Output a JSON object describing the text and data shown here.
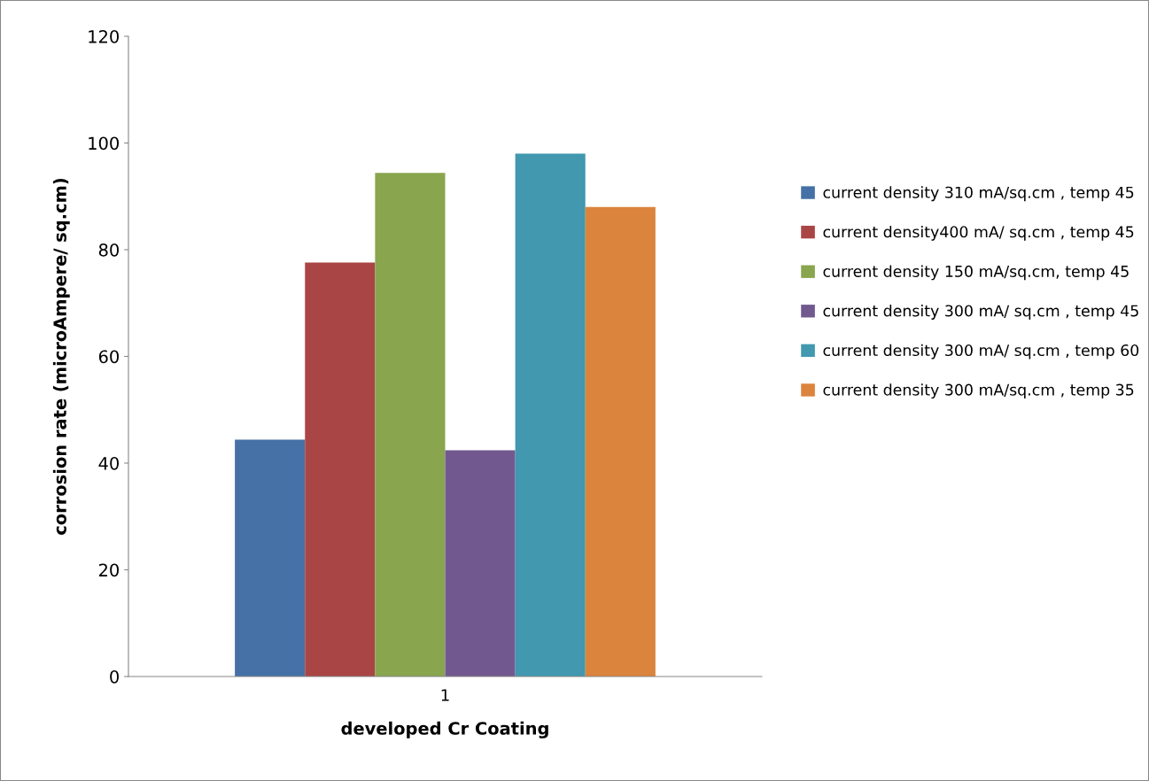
{
  "chart_data": {
    "type": "bar",
    "xlabel": "developed Cr Coating",
    "ylabel": "corrosion rate (microAmpere/ sq.cm)",
    "categories": [
      "1"
    ],
    "series": [
      {
        "name": "current density 310 mA/sq.cm , temp 45",
        "color": "#4571a6",
        "values": [
          44.4
        ]
      },
      {
        "name": "current density400 mA/ sq.cm , temp 45",
        "color": "#a94645",
        "values": [
          77.6
        ]
      },
      {
        "name": "current density 150 mA/sq.cm, temp 45",
        "color": "#89a54e",
        "values": [
          94.4
        ]
      },
      {
        "name": "current density 300 mA/ sq.cm , temp 45",
        "color": "#71598f",
        "values": [
          42.4
        ]
      },
      {
        "name": "current density 300 mA/ sq.cm , temp 60",
        "color": "#4198af",
        "values": [
          98.0
        ]
      },
      {
        "name": "current density 300 mA/sq.cm , temp 35",
        "color": "#db843d",
        "values": [
          88.0
        ]
      }
    ],
    "ylim": [
      0,
      120
    ],
    "yticks": [
      0,
      20,
      40,
      60,
      80,
      100,
      120
    ],
    "grid": false,
    "legend": "right"
  }
}
